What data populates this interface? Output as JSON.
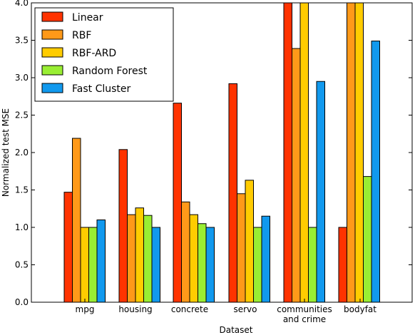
{
  "chart_data": {
    "type": "bar",
    "title": "",
    "xlabel": "Dataset",
    "ylabel": "Normalized test MSE",
    "ylim": [
      0,
      4.0
    ],
    "yticks": [
      "0.0",
      "0.5",
      "1.0",
      "1.5",
      "2.0",
      "2.5",
      "3.0",
      "3.5",
      "4.0"
    ],
    "categories": [
      {
        "lines": [
          "mpg"
        ]
      },
      {
        "lines": [
          "housing"
        ]
      },
      {
        "lines": [
          "concrete"
        ]
      },
      {
        "lines": [
          "servo"
        ]
      },
      {
        "lines": [
          "communities",
          "and crime"
        ]
      },
      {
        "lines": [
          "bodyfat"
        ]
      }
    ],
    "legend_position": "top-left",
    "series": [
      {
        "name": "Linear",
        "color": "#ff3300",
        "values": [
          1.47,
          2.04,
          2.66,
          2.92,
          4.0,
          1.0
        ]
      },
      {
        "name": "RBF",
        "color": "#ff9919",
        "values": [
          2.19,
          1.17,
          1.34,
          1.45,
          3.39,
          4.0
        ]
      },
      {
        "name": "RBF-ARD",
        "color": "#ffcc00",
        "values": [
          1.0,
          1.26,
          1.17,
          1.63,
          4.0,
          4.0
        ]
      },
      {
        "name": "Random Forest",
        "color": "#99ee33",
        "values": [
          1.0,
          1.16,
          1.05,
          1.0,
          1.0,
          1.68
        ]
      },
      {
        "name": "Fast Cluster",
        "color": "#1199ee",
        "values": [
          1.1,
          1.0,
          1.0,
          1.15,
          2.95,
          3.49
        ]
      }
    ]
  }
}
